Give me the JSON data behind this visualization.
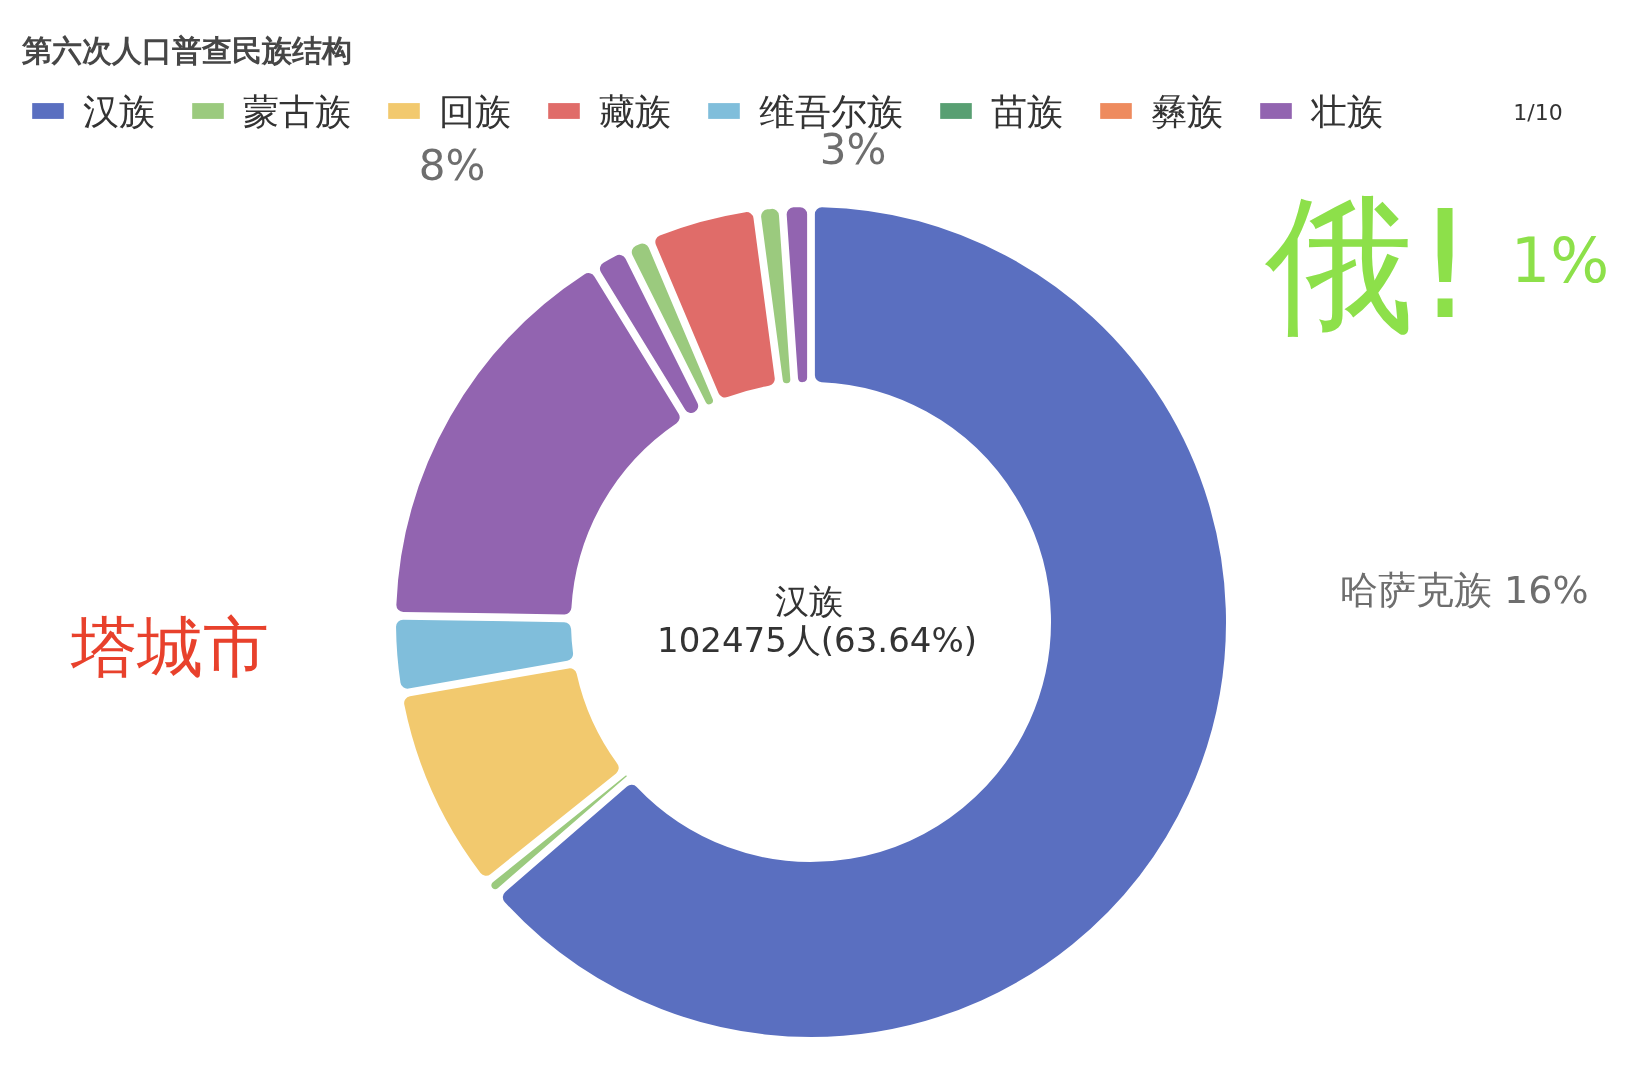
{
  "chart_data": {
    "type": "donut",
    "title": "第六次人口普查民族结构",
    "categories": [
      "汉族",
      "蒙古族",
      "回族",
      "藏族",
      "维吾尔族",
      "苗族",
      "彝族",
      "壮族",
      null,
      null,
      null,
      null,
      null,
      null,
      null
    ],
    "values": [
      63.64,
      0.6,
      8,
      0,
      3,
      0,
      0,
      0,
      0,
      16,
      1.4,
      1.0,
      4.26,
      1.0,
      1.1
    ],
    "colors": [
      "#5a6fc0",
      "#9bca7e",
      "#f2c96e",
      "#e06c69",
      "#80bedb",
      "#589f72",
      "#ee8b5e",
      "#9264b0",
      "#e07fcc",
      "#9264b0",
      "#9264b0",
      "#9bca7e",
      "#e06c69",
      "#9bca7e",
      "#9264b0"
    ],
    "legend": "top left",
    "annotations": [
      "汉族",
      "102475人(63.64%)",
      "8%",
      "3%",
      "1%",
      "哈萨克族 16%",
      "塔城市",
      "俄!",
      "1/10"
    ]
  }
}
